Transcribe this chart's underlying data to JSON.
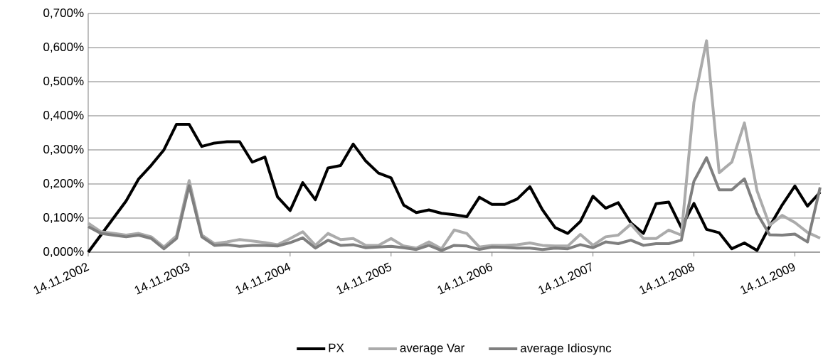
{
  "chart_data": {
    "type": "line",
    "categories": [
      "14.11.2002",
      null,
      null,
      null,
      null,
      null,
      null,
      null,
      "14.11.2003",
      null,
      null,
      null,
      null,
      null,
      null,
      null,
      "14.11.2004",
      null,
      null,
      null,
      null,
      null,
      null,
      null,
      "14.11.2005",
      null,
      null,
      null,
      null,
      null,
      null,
      null,
      "14.11.2006",
      null,
      null,
      null,
      null,
      null,
      null,
      null,
      "14.11.2007",
      null,
      null,
      null,
      null,
      null,
      null,
      null,
      "14.11.2008",
      null,
      null,
      null,
      null,
      null,
      null,
      null,
      "14.11.2009",
      null,
      null
    ],
    "series": [
      {
        "name": "PX",
        "color": "#000000",
        "values": [
          0,
          0.05,
          0.1,
          0.15,
          0.215,
          0.255,
          0.3,
          0.375,
          0.375,
          0.31,
          0.32,
          0.324,
          0.324,
          0.264,
          0.279,
          0.162,
          0.122,
          0.204,
          0.154,
          0.247,
          0.254,
          0.317,
          0.267,
          0.232,
          0.218,
          0.138,
          0.116,
          0.124,
          0.114,
          0.11,
          0.104,
          0.161,
          0.14,
          0.14,
          0.156,
          0.192,
          0.124,
          0.072,
          0.055,
          0.09,
          0.164,
          0.129,
          0.145,
          0.086,
          0.055,
          0.142,
          0.147,
          0.072,
          0.143,
          0.067,
          0.057,
          0.01,
          0.027,
          0.005,
          0.076,
          0.139,
          0.194,
          0.135,
          0.176
        ]
      },
      {
        "name": "average Var",
        "color": "#ababab",
        "values": [
          0.085,
          0.06,
          0.055,
          0.05,
          0.055,
          0.045,
          0.015,
          0.048,
          0.21,
          0.05,
          0.025,
          0.03,
          0.037,
          0.033,
          0.028,
          0.022,
          0.04,
          0.06,
          0.02,
          0.055,
          0.037,
          0.04,
          0.02,
          0.02,
          0.04,
          0.018,
          0.012,
          0.03,
          0.01,
          0.065,
          0.055,
          0.015,
          0.02,
          0.02,
          0.022,
          0.027,
          0.02,
          0.018,
          0.018,
          0.052,
          0.02,
          0.045,
          0.05,
          0.082,
          0.04,
          0.04,
          0.065,
          0.05,
          0.44,
          0.62,
          0.233,
          0.264,
          0.379,
          0.18,
          0.079,
          0.108,
          0.087,
          0.058,
          0.041
        ]
      },
      {
        "name": "average Idiosync",
        "color": "#7f7f7f",
        "values": [
          0.075,
          0.055,
          0.05,
          0.045,
          0.05,
          0.04,
          0.01,
          0.04,
          0.195,
          0.045,
          0.02,
          0.022,
          0.017,
          0.02,
          0.02,
          0.018,
          0.028,
          0.042,
          0.012,
          0.035,
          0.02,
          0.022,
          0.013,
          0.015,
          0.017,
          0.013,
          0.008,
          0.02,
          0.005,
          0.02,
          0.018,
          0.008,
          0.015,
          0.014,
          0.012,
          0.012,
          0.008,
          0.012,
          0.01,
          0.022,
          0.013,
          0.03,
          0.025,
          0.035,
          0.02,
          0.025,
          0.025,
          0.035,
          0.208,
          0.277,
          0.183,
          0.183,
          0.215,
          0.114,
          0.051,
          0.05,
          0.053,
          0.03,
          0.19
        ]
      }
    ],
    "ylim": [
      0,
      0.7
    ],
    "yticks": [
      {
        "value": 0,
        "label": "0,000%"
      },
      {
        "value": 0.1,
        "label": "0,100%"
      },
      {
        "value": 0.2,
        "label": "0,200%"
      },
      {
        "value": 0.3,
        "label": "0,300%"
      },
      {
        "value": 0.4,
        "label": "0,400%"
      },
      {
        "value": 0.5,
        "label": "0,500%"
      },
      {
        "value": 0.6,
        "label": "0,600%"
      },
      {
        "value": 0.7,
        "label": "0,700%"
      }
    ],
    "grid": "y",
    "legend": "bottom",
    "marker": "none",
    "line_style": "solid"
  }
}
